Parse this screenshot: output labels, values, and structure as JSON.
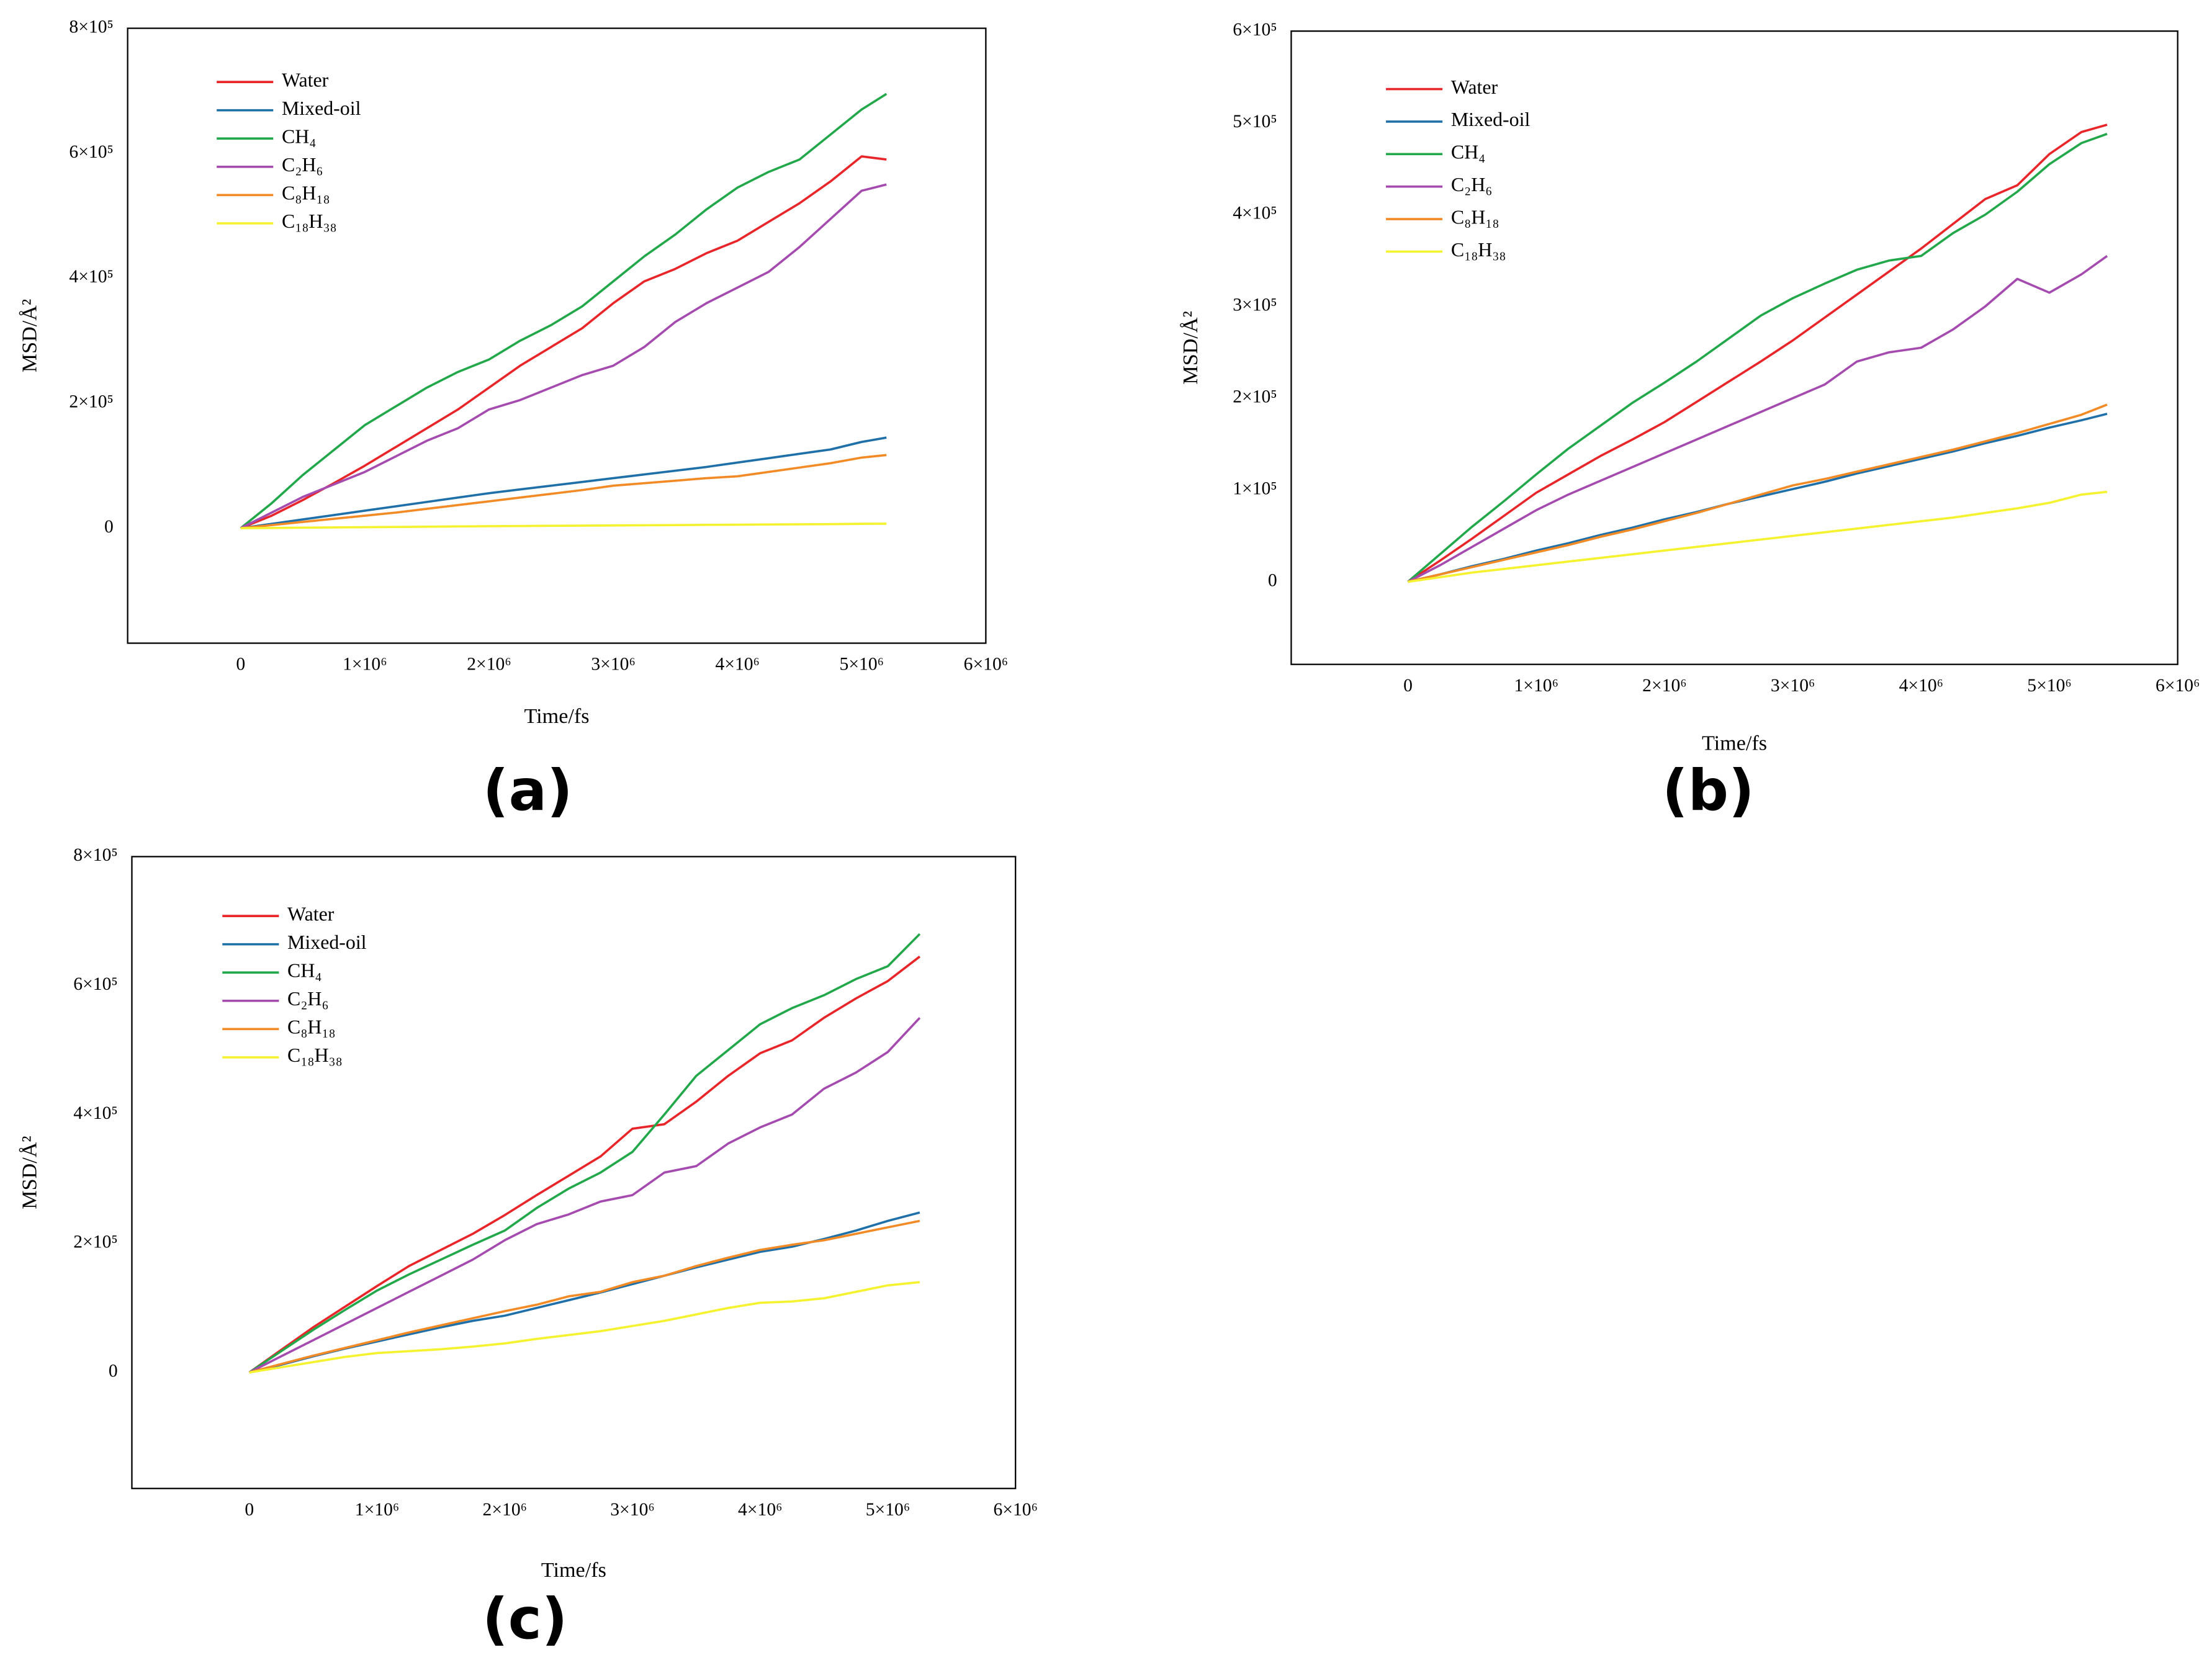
{
  "chart_data": [
    {
      "type": "line",
      "title": "(a)",
      "xlabel": "Time/fs",
      "ylabel": "MSD/Å²",
      "xlim": [
        -910000,
        6000000
      ],
      "ylim": [
        -184000,
        800000
      ],
      "xticks": [
        0,
        {
          "value": 1000000,
          "label": "1×10⁶"
        },
        {
          "value": 2000000,
          "label": "2×10⁶"
        },
        {
          "value": 3000000,
          "label": "3×10⁶"
        },
        {
          "value": 4000000,
          "label": "4×10⁶"
        },
        {
          "value": 5000000,
          "label": "5×10⁶"
        },
        {
          "value": 6000000,
          "label": "6×10⁶"
        }
      ],
      "yticks": [
        0,
        {
          "value": 200000,
          "label": "2×10⁵"
        },
        {
          "value": 400000,
          "label": "4×10⁵"
        },
        {
          "value": 600000,
          "label": "6×10⁵"
        },
        {
          "value": 800000,
          "label": "8×10⁵"
        }
      ],
      "x": [
        0,
        250000,
        500000,
        750000,
        1000000,
        1250000,
        1500000,
        1750000,
        2000000,
        2250000,
        2500000,
        2750000,
        3000000,
        3250000,
        3500000,
        3750000,
        4000000,
        4250000,
        4500000,
        4750000,
        5000000,
        5200000
      ],
      "series": [
        {
          "name": "Water",
          "color": "#e8262a",
          "values": [
            0,
            20000,
            45000,
            72000,
            100000,
            130000,
            160000,
            190000,
            225000,
            260000,
            290000,
            320000,
            360000,
            395000,
            415000,
            440000,
            460000,
            490000,
            520000,
            555000,
            595000,
            590000
          ]
        },
        {
          "name": "Mixed-oil",
          "color": "#1f6fa8",
          "values": [
            0,
            7000,
            14000,
            21000,
            28000,
            35000,
            42000,
            49000,
            56000,
            62000,
            68000,
            74000,
            80000,
            86000,
            92000,
            98000,
            105000,
            112000,
            119000,
            126000,
            138000,
            145000
          ]
        },
        {
          "name": "CH₄",
          "color": "#22a84a",
          "values": [
            0,
            40000,
            85000,
            125000,
            165000,
            195000,
            225000,
            250000,
            270000,
            300000,
            325000,
            355000,
            395000,
            435000,
            470000,
            510000,
            545000,
            570000,
            590000,
            630000,
            670000,
            695000
          ]
        },
        {
          "name": "C₂H₆",
          "color": "#a54bb0",
          "values": [
            0,
            25000,
            50000,
            70000,
            90000,
            115000,
            140000,
            160000,
            190000,
            205000,
            225000,
            245000,
            260000,
            290000,
            330000,
            360000,
            385000,
            410000,
            450000,
            495000,
            540000,
            550000
          ]
        },
        {
          "name": "C₈H₁₈",
          "color": "#f28a26",
          "values": [
            0,
            5000,
            10000,
            15000,
            20000,
            25000,
            31000,
            37000,
            43000,
            49000,
            55000,
            61000,
            68000,
            72000,
            76000,
            80000,
            83000,
            90000,
            97000,
            104000,
            113000,
            117000
          ]
        },
        {
          "name": "C₁₈H₃₈",
          "color": "#f5f230",
          "values": [
            0,
            400,
            800,
            1200,
            1600,
            2000,
            2400,
            2800,
            3200,
            3500,
            3800,
            4100,
            4400,
            4700,
            5000,
            5300,
            5600,
            5900,
            6200,
            6500,
            7000,
            7200
          ]
        }
      ]
    },
    {
      "type": "line",
      "title": "(b)",
      "xlabel": "Time/fs",
      "ylabel": "MSD/Å²",
      "xlim": [
        -910000,
        6000000
      ],
      "ylim": [
        -90000,
        600000
      ],
      "xticks": [
        0,
        {
          "value": 1000000,
          "label": "1×10⁶"
        },
        {
          "value": 2000000,
          "label": "2×10⁶"
        },
        {
          "value": 3000000,
          "label": "3×10⁶"
        },
        {
          "value": 4000000,
          "label": "4×10⁶"
        },
        {
          "value": 5000000,
          "label": "5×10⁶"
        },
        {
          "value": 6000000,
          "label": "6×10⁶"
        }
      ],
      "yticks": [
        0,
        {
          "value": 100000,
          "label": "1×10⁵"
        },
        {
          "value": 200000,
          "label": "2×10⁵"
        },
        {
          "value": 300000,
          "label": "3×10⁵"
        },
        {
          "value": 400000,
          "label": "4×10⁵"
        },
        {
          "value": 500000,
          "label": "5×10⁵"
        },
        {
          "value": 600000,
          "label": "6×10⁵"
        }
      ],
      "x": [
        0,
        250000,
        500000,
        750000,
        1000000,
        1250000,
        1500000,
        1750000,
        2000000,
        2250000,
        2500000,
        2750000,
        3000000,
        3250000,
        3500000,
        3750000,
        4000000,
        4250000,
        4500000,
        4750000,
        5000000,
        5250000,
        5450000
      ],
      "series": [
        {
          "name": "Water",
          "color": "#e8262a",
          "values": [
            0,
            23000,
            47000,
            72000,
            97000,
            117000,
            137000,
            155000,
            174000,
            196000,
            218000,
            240000,
            263000,
            288000,
            313000,
            338000,
            363000,
            390000,
            417000,
            432000,
            466000,
            490000,
            498000
          ]
        },
        {
          "name": "Mixed-oil",
          "color": "#1f6fa8",
          "values": [
            0,
            8000,
            17000,
            25000,
            34000,
            42000,
            51000,
            59000,
            68000,
            76000,
            85000,
            93000,
            101000,
            109000,
            118000,
            126000,
            134000,
            142000,
            151000,
            159000,
            168000,
            176000,
            183000
          ]
        },
        {
          "name": "CH₄",
          "color": "#22a84a",
          "values": [
            0,
            30000,
            60000,
            88000,
            117000,
            145000,
            170000,
            195000,
            217000,
            240000,
            265000,
            290000,
            309000,
            325000,
            340000,
            350000,
            355000,
            380000,
            400000,
            425000,
            455000,
            478000,
            488000
          ]
        },
        {
          "name": "C₂H₆",
          "color": "#a54bb0",
          "values": [
            0,
            18000,
            38000,
            58000,
            78000,
            95000,
            110000,
            125000,
            140000,
            155000,
            170000,
            185000,
            200000,
            215000,
            240000,
            250000,
            255000,
            275000,
            300000,
            330000,
            315000,
            335000,
            355000
          ]
        },
        {
          "name": "C₈H₁₈",
          "color": "#f28a26",
          "values": [
            0,
            8000,
            16000,
            24000,
            32000,
            40000,
            49000,
            57000,
            66000,
            75000,
            85000,
            95000,
            105000,
            112000,
            120000,
            128000,
            136000,
            144000,
            153000,
            162000,
            172000,
            182000,
            193000
          ]
        },
        {
          "name": "C₁₈H₃₈",
          "color": "#f5f230",
          "values": [
            0,
            5000,
            10000,
            14000,
            18000,
            22000,
            26000,
            30000,
            34000,
            38000,
            42000,
            46000,
            50000,
            54000,
            58000,
            62000,
            66000,
            70000,
            75000,
            80000,
            86000,
            95000,
            98000
          ]
        }
      ]
    },
    {
      "type": "line",
      "title": "(c)",
      "xlabel": "Time/fs",
      "ylabel": "MSD/Å²",
      "xlim": [
        -920000,
        6000000
      ],
      "ylim": [
        -180000,
        800000
      ],
      "xticks": [
        0,
        {
          "value": 1000000,
          "label": "1×10⁶"
        },
        {
          "value": 2000000,
          "label": "2×10⁶"
        },
        {
          "value": 3000000,
          "label": "3×10⁶"
        },
        {
          "value": 4000000,
          "label": "4×10⁶"
        },
        {
          "value": 5000000,
          "label": "5×10⁶"
        },
        {
          "value": 6000000,
          "label": "6×10⁶"
        }
      ],
      "yticks": [
        0,
        {
          "value": 200000,
          "label": "2×10⁵"
        },
        {
          "value": 400000,
          "label": "4×10⁵"
        },
        {
          "value": 600000,
          "label": "6×10⁵"
        },
        {
          "value": 800000,
          "label": "8×10⁵"
        }
      ],
      "x": [
        0,
        250000,
        500000,
        750000,
        1000000,
        1250000,
        1500000,
        1750000,
        2000000,
        2250000,
        2500000,
        2750000,
        3000000,
        3250000,
        3500000,
        3750000,
        4000000,
        4250000,
        4500000,
        4750000,
        5000000,
        5250000
      ],
      "series": [
        {
          "name": "Water",
          "color": "#e8262a",
          "values": [
            0,
            35000,
            70000,
            102000,
            134000,
            165000,
            190000,
            215000,
            244000,
            275000,
            305000,
            335000,
            378000,
            385000,
            420000,
            460000,
            495000,
            515000,
            550000,
            580000,
            607000,
            645000
          ]
        },
        {
          "name": "Mixed-oil",
          "color": "#1f6fa8",
          "values": [
            0,
            12000,
            25000,
            37000,
            48000,
            59000,
            70000,
            80000,
            88000,
            100000,
            112000,
            124000,
            137000,
            150000,
            163000,
            175000,
            187000,
            195000,
            207000,
            220000,
            235000,
            248000
          ]
        },
        {
          "name": "CH₄",
          "color": "#22a84a",
          "values": [
            0,
            33000,
            66000,
            97000,
            127000,
            152000,
            175000,
            198000,
            220000,
            255000,
            285000,
            310000,
            342000,
            400000,
            460000,
            500000,
            540000,
            565000,
            585000,
            610000,
            630000,
            680000
          ]
        },
        {
          "name": "C₂H₆",
          "color": "#a54bb0",
          "values": [
            0,
            25000,
            50000,
            75000,
            100000,
            125000,
            150000,
            175000,
            205000,
            230000,
            245000,
            265000,
            275000,
            310000,
            320000,
            355000,
            380000,
            400000,
            440000,
            465000,
            497000,
            550000
          ]
        },
        {
          "name": "C₈H₁₈",
          "color": "#f28a26",
          "values": [
            0,
            13000,
            26000,
            38000,
            50000,
            62000,
            73000,
            84000,
            95000,
            105000,
            118000,
            125000,
            140000,
            150000,
            165000,
            178000,
            190000,
            198000,
            205000,
            215000,
            225000,
            235000
          ]
        },
        {
          "name": "C₁₈H₃₈",
          "color": "#f5f230",
          "values": [
            0,
            8000,
            16000,
            24000,
            30000,
            33000,
            36000,
            40000,
            45000,
            52000,
            58000,
            64000,
            72000,
            80000,
            90000,
            100000,
            108000,
            110000,
            115000,
            125000,
            135000,
            140000
          ]
        }
      ]
    }
  ]
}
